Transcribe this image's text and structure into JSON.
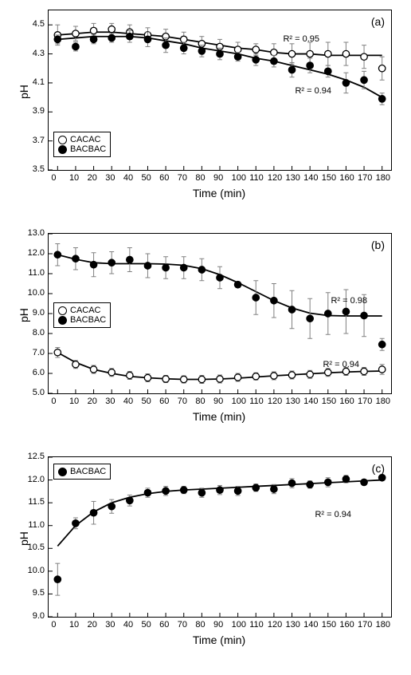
{
  "common": {
    "xlabel": "Time (min)",
    "ylabel": "pH",
    "x_ticks": [
      0,
      10,
      20,
      30,
      40,
      50,
      60,
      70,
      80,
      90,
      100,
      110,
      120,
      130,
      140,
      150,
      160,
      170,
      180
    ],
    "xlim": [
      -5,
      185
    ],
    "marker_radius": 4.2,
    "marker_stroke": "#000000",
    "error_color": "#808080",
    "line_color": "#000000",
    "line_width": 1.8,
    "tick_color": "#000000",
    "font_color": "#000000",
    "legend_cacac": "CACAC",
    "legend_bacbac": "BACBAC"
  },
  "panels": {
    "a": {
      "tag": "(a)",
      "ylim": [
        3.5,
        4.6
      ],
      "y_ticks": [
        3.5,
        3.7,
        3.9,
        4.1,
        4.3,
        4.5
      ],
      "r2_a": "R² = 0.95",
      "r2_b": "R² = 0.94",
      "series": {
        "cacac": {
          "fill": "#ffffff",
          "y": [
            4.43,
            4.44,
            4.46,
            4.47,
            4.45,
            4.43,
            4.42,
            4.4,
            4.37,
            4.35,
            4.33,
            4.33,
            4.31,
            4.3,
            4.3,
            4.3,
            4.3,
            4.28,
            4.2
          ],
          "e": [
            0.07,
            0.05,
            0.05,
            0.04,
            0.05,
            0.05,
            0.05,
            0.05,
            0.05,
            0.05,
            0.05,
            0.04,
            0.06,
            0.07,
            0.08,
            0.08,
            0.08,
            0.08,
            0.08
          ]
        },
        "bacbac": {
          "fill": "#000000",
          "y": [
            4.4,
            4.35,
            4.4,
            4.41,
            4.42,
            4.4,
            4.36,
            4.34,
            4.32,
            4.3,
            4.28,
            4.26,
            4.25,
            4.19,
            4.22,
            4.18,
            4.1,
            4.12,
            3.99
          ],
          "e": [
            0.03,
            0.03,
            0.03,
            0.03,
            0.04,
            0.05,
            0.05,
            0.04,
            0.04,
            0.04,
            0.03,
            0.04,
            0.04,
            0.05,
            0.05,
            0.04,
            0.07,
            0.06,
            0.04
          ]
        },
        "fit_cacac": [
          4.43,
          4.44,
          4.45,
          4.45,
          4.44,
          4.43,
          4.42,
          4.4,
          4.38,
          4.36,
          4.34,
          4.33,
          4.31,
          4.3,
          4.3,
          4.29,
          4.29,
          4.29,
          4.29
        ],
        "fit_bacbac": [
          4.4,
          4.41,
          4.42,
          4.42,
          4.42,
          4.41,
          4.39,
          4.37,
          4.34,
          4.32,
          4.3,
          4.27,
          4.25,
          4.22,
          4.19,
          4.16,
          4.12,
          4.07,
          4.0
        ]
      }
    },
    "b": {
      "tag": "(b)",
      "ylim": [
        5.0,
        13.0
      ],
      "y_ticks": [
        5.0,
        6.0,
        7.0,
        8.0,
        9.0,
        10.0,
        11.0,
        12.0,
        13.0
      ],
      "r2_a": "R² = 0.98",
      "r2_b": "R² = 0.94",
      "series": {
        "cacac": {
          "fill": "#ffffff",
          "y": [
            7.05,
            6.45,
            6.2,
            6.05,
            5.9,
            5.78,
            5.72,
            5.7,
            5.7,
            5.72,
            5.8,
            5.85,
            5.88,
            5.92,
            5.95,
            6.05,
            6.1,
            6.1,
            6.2
          ],
          "e": [
            0.25,
            0.2,
            0.2,
            0.2,
            0.2,
            0.2,
            0.18,
            0.18,
            0.2,
            0.2,
            0.2,
            0.18,
            0.2,
            0.2,
            0.2,
            0.2,
            0.2,
            0.2,
            0.25
          ]
        },
        "bacbac": {
          "fill": "#000000",
          "y": [
            11.95,
            11.75,
            11.45,
            11.55,
            11.7,
            11.4,
            11.3,
            11.3,
            11.2,
            10.8,
            10.45,
            9.8,
            9.65,
            9.2,
            8.75,
            9.0,
            9.1,
            8.9,
            7.45
          ],
          "e": [
            0.55,
            0.55,
            0.6,
            0.55,
            0.6,
            0.6,
            0.55,
            0.55,
            0.55,
            0.55,
            0.15,
            0.85,
            0.85,
            0.95,
            1.0,
            1.05,
            1.1,
            1.05,
            0.3
          ]
        },
        "fit_cacac": [
          7.05,
          6.55,
          6.2,
          6.0,
          5.85,
          5.78,
          5.73,
          5.7,
          5.7,
          5.72,
          5.76,
          5.82,
          5.88,
          5.93,
          5.98,
          6.03,
          6.07,
          6.1,
          6.12
        ],
        "fit_bacbac": [
          11.95,
          11.72,
          11.55,
          11.5,
          11.5,
          11.5,
          11.48,
          11.42,
          11.25,
          10.95,
          10.55,
          10.1,
          9.65,
          9.28,
          9.02,
          8.9,
          8.88,
          8.88,
          8.88
        ]
      }
    },
    "c": {
      "tag": "(c)",
      "ylim": [
        9.0,
        12.5
      ],
      "y_ticks": [
        9.0,
        9.5,
        10.0,
        10.5,
        11.0,
        11.5,
        12.0,
        12.5
      ],
      "r2": "R² = 0.94",
      "series": {
        "bacbac": {
          "fill": "#000000",
          "y": [
            9.82,
            11.05,
            11.28,
            11.42,
            11.55,
            11.72,
            11.76,
            11.78,
            11.72,
            11.78,
            11.76,
            11.83,
            11.8,
            11.93,
            11.9,
            11.95,
            12.02,
            11.95,
            12.05
          ],
          "e": [
            0.35,
            0.12,
            0.25,
            0.15,
            0.12,
            0.1,
            0.1,
            0.08,
            0.1,
            0.1,
            0.1,
            0.08,
            0.1,
            0.1,
            0.08,
            0.1,
            0.08,
            0.05,
            0.05
          ]
        },
        "fit_bacbac": [
          10.55,
          11.0,
          11.3,
          11.5,
          11.62,
          11.7,
          11.75,
          11.78,
          11.8,
          11.82,
          11.84,
          11.86,
          11.88,
          11.9,
          11.92,
          11.94,
          11.96,
          11.98,
          12.0
        ]
      }
    }
  }
}
